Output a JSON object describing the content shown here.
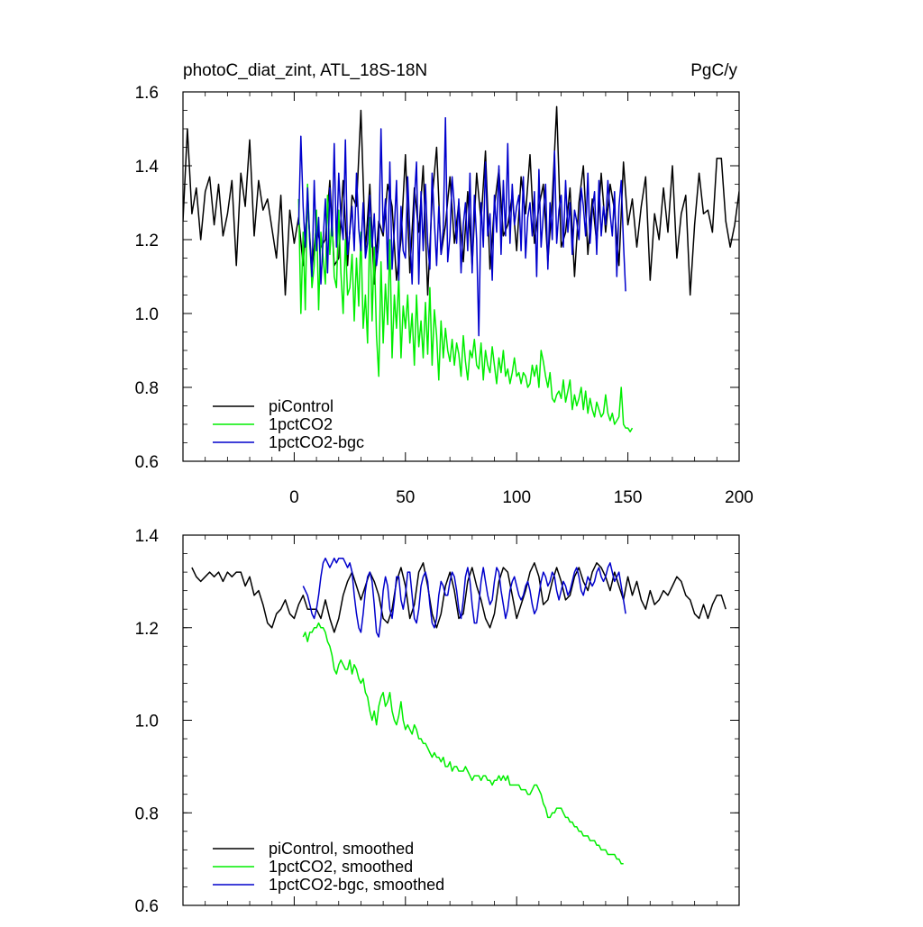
{
  "colors": {
    "piControl": "#000000",
    "1pctCO2": "#00ee00",
    "1pctCO2-bgc": "#0000cc"
  },
  "chart_data": [
    {
      "type": "line",
      "title": "photoC_diat_zint, ATL_18S-18N",
      "units": "PgC/y",
      "xlim": [
        -50,
        200
      ],
      "ylim": [
        0.6,
        1.6
      ],
      "xticks": [
        "0",
        "50",
        "100",
        "150",
        "200"
      ],
      "yticks": [
        "0.6",
        "0.8",
        "1.0",
        "1.2",
        "1.4",
        "1.6"
      ],
      "legend_position": "bottom-left",
      "series": [
        {
          "name": "piControl",
          "color_key": "piControl",
          "x_start": -50,
          "x_step": 2,
          "values": [
            1.25,
            1.5,
            1.27,
            1.34,
            1.2,
            1.33,
            1.37,
            1.24,
            1.35,
            1.21,
            1.27,
            1.36,
            1.13,
            1.38,
            1.29,
            1.47,
            1.21,
            1.36,
            1.28,
            1.31,
            1.23,
            1.15,
            1.32,
            1.05,
            1.28,
            1.19,
            1.26,
            1.13,
            1.3,
            1.12,
            1.24,
            1.18,
            1.2,
            1.36,
            1.13,
            1.15,
            1.36,
            1.13,
            1.32,
            1.29,
            1.55,
            1.17,
            1.35,
            1.08,
            1.25,
            1.21,
            1.35,
            1.29,
            1.09,
            1.2,
            1.43,
            1.11,
            1.34,
            1.22,
            1.4,
            1.05,
            1.31,
            1.45,
            1.16,
            1.24,
            1.37,
            1.19,
            1.3,
            1.14,
            1.33,
            1.13,
            1.38,
            1.25,
            1.44,
            1.12,
            1.29,
            1.39,
            1.21,
            1.24,
            1.32,
            1.17,
            1.37,
            1.27,
            1.43,
            1.19,
            1.29,
            1.35,
            1.14,
            1.31,
            1.56,
            1.18,
            1.22,
            1.34,
            1.1,
            1.3,
            1.4,
            1.16,
            1.31,
            1.19,
            1.38,
            1.22,
            1.35,
            1.28,
            1.13,
            1.41,
            1.24,
            1.31,
            1.18,
            1.29,
            1.37,
            1.09,
            1.27,
            1.2,
            1.34,
            1.22,
            1.4,
            1.15,
            1.27,
            1.32,
            1.05,
            1.24,
            1.38,
            1.27,
            1.28,
            1.22,
            1.42,
            1.42,
            1.25,
            1.18,
            1.24,
            1.33,
            1.3,
            1.05
          ]
        },
        {
          "name": "1pctCO2",
          "color_key": "1pctCO2",
          "x_start": 2,
          "x_step": 1,
          "values": [
            1.31,
            1.0,
            1.22,
            1.01,
            1.35,
            1.2,
            1.07,
            1.13,
            1.28,
            1.01,
            1.22,
            1.15,
            1.08,
            1.32,
            1.16,
            1.26,
            1.1,
            1.07,
            1.28,
            1.11,
            1.0,
            1.2,
            1.05,
            1.07,
            1.16,
            0.98,
            1.15,
            1.02,
            1.22,
            0.96,
            1.05,
            0.92,
            1.26,
            0.98,
            1.18,
            0.94,
            0.83,
            1.14,
            0.92,
            1.08,
            0.97,
            1.2,
            0.88,
            1.05,
            0.96,
            1.1,
            0.88,
            1.02,
            0.96,
            1.05,
            0.92,
            1.0,
            0.86,
            1.05,
            0.91,
            0.98,
            0.88,
            1.03,
            0.89,
            1.07,
            0.86,
            1.01,
            0.94,
            0.82,
            0.98,
            0.88,
            0.96,
            0.9,
            0.87,
            0.93,
            0.86,
            0.92,
            0.89,
            0.83,
            0.94,
            0.87,
            0.82,
            0.9,
            0.88,
            0.93,
            0.86,
            0.85,
            0.92,
            0.82,
            0.9,
            0.86,
            0.84,
            0.91,
            0.86,
            0.81,
            0.88,
            0.84,
            0.9,
            0.83,
            0.85,
            0.81,
            0.84,
            0.88,
            0.83,
            0.84,
            0.81,
            0.84,
            0.83,
            0.8,
            0.81,
            0.86,
            0.83,
            0.86,
            0.8,
            0.9,
            0.87,
            0.83,
            0.8,
            0.84,
            0.77,
            0.76,
            0.78,
            0.79,
            0.77,
            0.82,
            0.76,
            0.79,
            0.82,
            0.74,
            0.78,
            0.75,
            0.77,
            0.8,
            0.74,
            0.79,
            0.73,
            0.77,
            0.74,
            0.72,
            0.76,
            0.74,
            0.72,
            0.73,
            0.78,
            0.73,
            0.71,
            0.73,
            0.7,
            0.71,
            0.72,
            0.8,
            0.7,
            0.69,
            0.69,
            0.68,
            0.69
          ]
        },
        {
          "name": "1pctCO2-bgc",
          "color_key": "1pctCO2-bgc",
          "x_start": 2,
          "x_step": 1,
          "values": [
            1.24,
            1.48,
            1.29,
            1.18,
            1.34,
            1.19,
            1.1,
            1.36,
            1.17,
            1.26,
            1.08,
            1.2,
            1.31,
            1.11,
            1.34,
            1.21,
            1.46,
            1.18,
            1.38,
            1.26,
            1.2,
            1.47,
            1.16,
            1.22,
            1.29,
            1.17,
            1.38,
            1.23,
            1.17,
            1.3,
            1.15,
            1.19,
            1.32,
            1.18,
            1.27,
            1.13,
            1.19,
            1.5,
            1.22,
            1.31,
            1.12,
            1.41,
            1.12,
            1.23,
            1.36,
            1.09,
            1.29,
            1.17,
            1.15,
            1.37,
            1.22,
            1.08,
            1.31,
            1.41,
            1.08,
            1.33,
            1.17,
            1.35,
            1.19,
            1.12,
            1.38,
            1.25,
            1.13,
            1.29,
            1.16,
            1.23,
            1.53,
            1.14,
            1.21,
            1.37,
            1.29,
            1.19,
            1.31,
            1.11,
            1.24,
            1.3,
            1.17,
            1.38,
            1.11,
            1.32,
            1.2,
            0.94,
            1.3,
            1.18,
            1.41,
            1.21,
            1.27,
            1.09,
            1.32,
            1.22,
            1.4,
            1.16,
            1.36,
            1.21,
            1.46,
            1.19,
            1.35,
            1.24,
            1.29,
            1.32,
            1.17,
            1.37,
            1.15,
            1.26,
            1.3,
            1.21,
            1.33,
            1.1,
            1.39,
            1.18,
            1.27,
            1.35,
            1.12,
            1.3,
            1.2,
            1.44,
            1.19,
            1.28,
            1.32,
            1.18,
            1.36,
            1.22,
            1.3,
            1.16,
            1.28,
            1.25,
            1.2,
            1.34,
            1.29,
            1.21,
            1.38,
            1.19,
            1.28,
            1.33,
            1.16,
            1.36,
            1.21,
            1.29,
            1.24,
            1.36,
            1.27,
            1.21,
            1.33,
            1.1,
            1.29,
            1.36,
            1.19,
            1.06
          ]
        }
      ]
    },
    {
      "type": "line",
      "title": "",
      "units": "",
      "xlim": [
        -50,
        200
      ],
      "ylim": [
        0.6,
        1.4
      ],
      "xticks": [],
      "yticks": [
        "0.6",
        "0.8",
        "1.0",
        "1.2",
        "1.4"
      ],
      "legend_position": "bottom-left",
      "series": [
        {
          "name": "piControl, smoothed",
          "color_key": "piControl",
          "x_start": -46,
          "x_step": 2,
          "values": [
            1.33,
            1.31,
            1.3,
            1.31,
            1.32,
            1.31,
            1.32,
            1.3,
            1.32,
            1.31,
            1.32,
            1.32,
            1.29,
            1.31,
            1.27,
            1.28,
            1.25,
            1.21,
            1.2,
            1.23,
            1.24,
            1.26,
            1.23,
            1.22,
            1.25,
            1.27,
            1.24,
            1.24,
            1.24,
            1.22,
            1.26,
            1.22,
            1.19,
            1.22,
            1.27,
            1.3,
            1.32,
            1.29,
            1.26,
            1.29,
            1.32,
            1.3,
            1.27,
            1.22,
            1.21,
            1.24,
            1.3,
            1.33,
            1.29,
            1.22,
            1.25,
            1.32,
            1.34,
            1.29,
            1.23,
            1.2,
            1.23,
            1.29,
            1.32,
            1.28,
            1.22,
            1.23,
            1.3,
            1.33,
            1.29,
            1.26,
            1.22,
            1.2,
            1.23,
            1.3,
            1.33,
            1.32,
            1.27,
            1.22,
            1.25,
            1.28,
            1.32,
            1.34,
            1.31,
            1.25,
            1.26,
            1.3,
            1.33,
            1.3,
            1.26,
            1.27,
            1.31,
            1.33,
            1.3,
            1.28,
            1.32,
            1.34,
            1.33,
            1.31,
            1.28,
            1.32,
            1.29,
            1.26,
            1.31,
            1.27,
            1.3,
            1.26,
            1.24,
            1.28,
            1.25,
            1.26,
            1.28,
            1.27,
            1.29,
            1.31,
            1.3,
            1.27,
            1.26,
            1.23,
            1.22,
            1.25,
            1.22,
            1.25,
            1.27,
            1.27,
            1.24
          ]
        },
        {
          "name": "1pctCO2, smoothed",
          "color_key": "1pctCO2",
          "x_start": 4,
          "x_step": 1,
          "values": [
            1.18,
            1.19,
            1.17,
            1.19,
            1.19,
            1.2,
            1.2,
            1.21,
            1.2,
            1.2,
            1.19,
            1.17,
            1.16,
            1.14,
            1.11,
            1.1,
            1.12,
            1.13,
            1.12,
            1.11,
            1.11,
            1.13,
            1.1,
            1.12,
            1.11,
            1.09,
            1.08,
            1.09,
            1.06,
            1.05,
            1.02,
            1.0,
            1.02,
            0.99,
            1.03,
            1.05,
            1.06,
            1.03,
            1.04,
            1.06,
            1.02,
            1.0,
            0.99,
            1.01,
            1.04,
            1.0,
            0.98,
            0.99,
            0.98,
            0.97,
            0.99,
            0.98,
            0.96,
            0.96,
            0.95,
            0.95,
            0.94,
            0.93,
            0.92,
            0.93,
            0.92,
            0.92,
            0.91,
            0.92,
            0.9,
            0.9,
            0.91,
            0.89,
            0.9,
            0.9,
            0.89,
            0.89,
            0.89,
            0.9,
            0.89,
            0.88,
            0.87,
            0.88,
            0.88,
            0.88,
            0.87,
            0.88,
            0.88,
            0.87,
            0.87,
            0.86,
            0.87,
            0.87,
            0.88,
            0.87,
            0.88,
            0.87,
            0.88,
            0.86,
            0.86,
            0.86,
            0.86,
            0.86,
            0.85,
            0.85,
            0.85,
            0.84,
            0.84,
            0.85,
            0.86,
            0.86,
            0.85,
            0.84,
            0.82,
            0.81,
            0.79,
            0.79,
            0.8,
            0.8,
            0.81,
            0.81,
            0.81,
            0.8,
            0.79,
            0.79,
            0.78,
            0.78,
            0.77,
            0.77,
            0.76,
            0.76,
            0.75,
            0.75,
            0.75,
            0.74,
            0.74,
            0.74,
            0.73,
            0.73,
            0.72,
            0.72,
            0.72,
            0.71,
            0.71,
            0.71,
            0.71,
            0.7,
            0.7,
            0.69,
            0.69
          ]
        },
        {
          "name": "1pctCO2-bgc, smoothed",
          "color_key": "1pctCO2-bgc",
          "x_start": 4,
          "x_step": 1,
          "values": [
            1.29,
            1.28,
            1.27,
            1.25,
            1.23,
            1.22,
            1.24,
            1.27,
            1.31,
            1.34,
            1.35,
            1.34,
            1.33,
            1.34,
            1.35,
            1.34,
            1.35,
            1.35,
            1.35,
            1.34,
            1.33,
            1.34,
            1.32,
            1.27,
            1.23,
            1.2,
            1.19,
            1.23,
            1.28,
            1.31,
            1.32,
            1.3,
            1.25,
            1.19,
            1.18,
            1.22,
            1.28,
            1.31,
            1.29,
            1.24,
            1.22,
            1.26,
            1.31,
            1.31,
            1.26,
            1.24,
            1.27,
            1.32,
            1.32,
            1.27,
            1.22,
            1.21,
            1.24,
            1.29,
            1.31,
            1.32,
            1.3,
            1.25,
            1.21,
            1.2,
            1.22,
            1.27,
            1.3,
            1.29,
            1.27,
            1.27,
            1.3,
            1.32,
            1.31,
            1.28,
            1.24,
            1.22,
            1.26,
            1.31,
            1.33,
            1.3,
            1.25,
            1.21,
            1.21,
            1.25,
            1.3,
            1.33,
            1.3,
            1.27,
            1.25,
            1.26,
            1.3,
            1.33,
            1.32,
            1.28,
            1.25,
            1.22,
            1.24,
            1.28,
            1.3,
            1.31,
            1.29,
            1.27,
            1.26,
            1.27,
            1.29,
            1.3,
            1.28,
            1.25,
            1.23,
            1.24,
            1.27,
            1.3,
            1.32,
            1.31,
            1.29,
            1.3,
            1.32,
            1.31,
            1.28,
            1.26,
            1.28,
            1.3,
            1.29,
            1.27,
            1.28,
            1.3,
            1.32,
            1.33,
            1.31,
            1.28,
            1.27,
            1.29,
            1.31,
            1.3,
            1.29,
            1.3,
            1.32,
            1.33,
            1.31,
            1.3,
            1.31,
            1.33,
            1.34,
            1.32,
            1.3,
            1.31,
            1.32,
            1.29,
            1.26,
            1.23
          ]
        }
      ]
    }
  ]
}
